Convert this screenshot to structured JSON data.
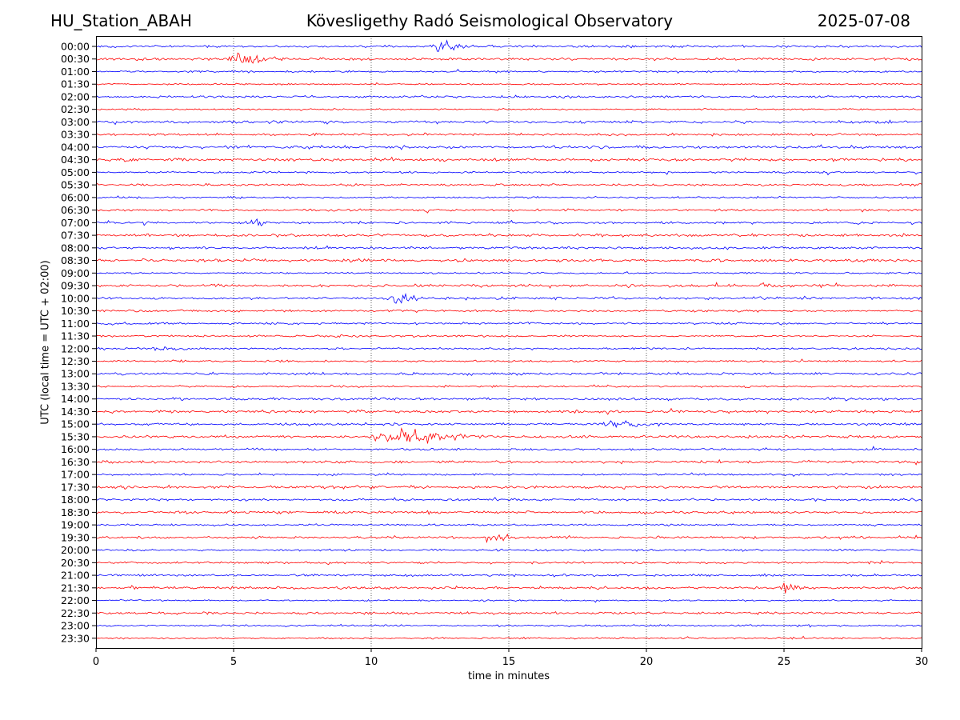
{
  "header": {
    "station": "HU_Station_ABAH",
    "observatory": "Kövesligethy Radó Seismological Observatory",
    "date": "2025-07-08"
  },
  "chart_data": {
    "type": "line",
    "title": "Kövesligethy Radó Seismological Observatory",
    "xlabel": "time in minutes",
    "ylabel": "UTC (local time = UTC + 02:00)",
    "xlim": [
      0,
      30
    ],
    "xticks": [
      0,
      5,
      10,
      15,
      20,
      25,
      30
    ],
    "grid": "vertical dotted at x ticks",
    "colors": {
      "even_rows": "#0000ff",
      "odd_rows": "#ff0000"
    },
    "rows": [
      "00:00",
      "00:30",
      "01:00",
      "01:30",
      "02:00",
      "02:30",
      "03:00",
      "03:30",
      "04:00",
      "04:30",
      "05:00",
      "05:30",
      "06:00",
      "06:30",
      "07:00",
      "07:30",
      "08:00",
      "08:30",
      "09:00",
      "09:30",
      "10:00",
      "10:30",
      "11:00",
      "11:30",
      "12:00",
      "12:30",
      "13:00",
      "13:30",
      "14:00",
      "14:30",
      "15:00",
      "15:30",
      "16:00",
      "16:30",
      "17:00",
      "17:30",
      "18:00",
      "18:30",
      "19:00",
      "19:30",
      "20:00",
      "20:30",
      "21:00",
      "21:30",
      "22:00",
      "22:30",
      "23:00",
      "23:30"
    ],
    "events": [
      {
        "row": "00:00",
        "start": 12.1,
        "peak": 12.7,
        "end": 14.5,
        "amplitude": 7
      },
      {
        "row": "00:00",
        "start": 15.1,
        "peak": 15.3,
        "end": 15.6,
        "amplitude": 3
      },
      {
        "row": "00:30",
        "start": 4.7,
        "peak": 5.2,
        "end": 7.0,
        "amplitude": 12
      },
      {
        "row": "07:00",
        "start": 5.3,
        "peak": 5.7,
        "end": 6.7,
        "amplitude": 6
      },
      {
        "row": "09:30",
        "start": 24.1,
        "peak": 24.2,
        "end": 24.5,
        "amplitude": 4
      },
      {
        "row": "10:00",
        "start": 10.3,
        "peak": 11.1,
        "end": 12.8,
        "amplitude": 5
      },
      {
        "row": "11:30",
        "start": 8.6,
        "peak": 8.7,
        "end": 9.0,
        "amplitude": 4
      },
      {
        "row": "12:00",
        "start": 1.9,
        "peak": 2.4,
        "end": 3.7,
        "amplitude": 3
      },
      {
        "row": "15:00",
        "start": 18.3,
        "peak": 18.8,
        "end": 20.8,
        "amplitude": 7
      },
      {
        "row": "15:30",
        "start": 9.8,
        "peak": 11.3,
        "end": 14.5,
        "amplitude": 10
      },
      {
        "row": "18:00",
        "start": 14.4,
        "peak": 14.4,
        "end": 14.6,
        "amplitude": 5
      },
      {
        "row": "19:30",
        "start": 13.9,
        "peak": 14.5,
        "end": 15.7,
        "amplitude": 6
      },
      {
        "row": "21:00",
        "start": 24.1,
        "peak": 24.2,
        "end": 24.4,
        "amplitude": 3
      },
      {
        "row": "21:30",
        "start": 24.8,
        "peak": 25.0,
        "end": 26.0,
        "amplitude": 11
      }
    ]
  }
}
